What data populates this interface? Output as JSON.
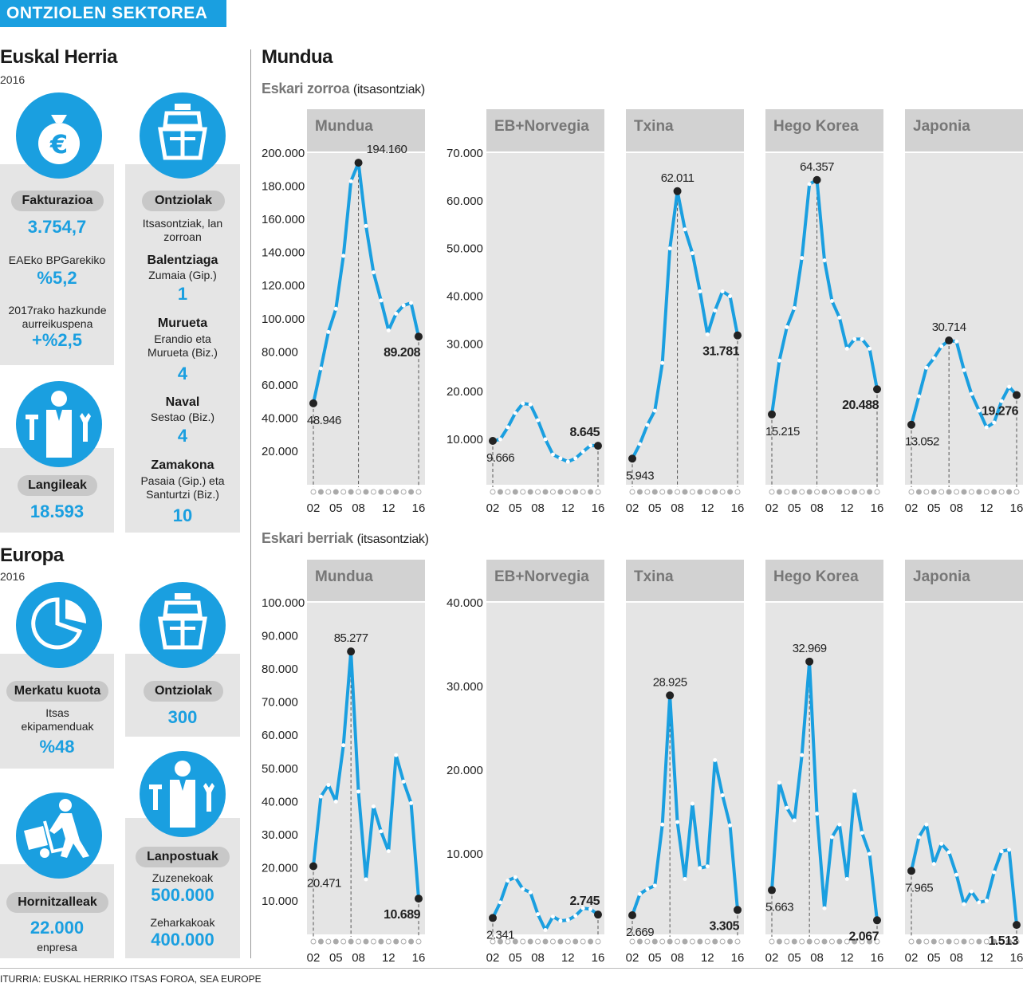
{
  "banner": "ONTZIOLEN SEKTOREA",
  "left": {
    "eh_title": "Euskal Herria",
    "eh_year": "2016",
    "fakt_label": "Fakturazioa",
    "fakt_value": "3.754,7",
    "bpg_label": "EAEko BPGarekiko",
    "bpg_value": "%5,2",
    "hazk_label": "2017rako hazkunde aurreikuspena",
    "hazk_value": "+%2,5",
    "lang_label": "Langileak",
    "lang_value": "18.593",
    "ontz_label": "Ontziolak",
    "ontz_sub": "Itsasontziak, lan zorroan",
    "yards": [
      {
        "name": "Balentziaga",
        "place": "Zumaia (Gip.)",
        "value": "1"
      },
      {
        "name": "Murueta",
        "place": "Erandio eta Murueta (Biz.)",
        "value": "4"
      },
      {
        "name": "Naval",
        "place": "Sestao (Biz.)",
        "value": "4"
      },
      {
        "name": "Zamakona",
        "place": "Pasaia (Gip.) eta Santurtzi (Biz.)",
        "value": "10"
      }
    ],
    "eu_title": "Europa",
    "eu_year": "2016",
    "merk_label": "Merkatu kuota",
    "merk_sub": "Itsas ekipamenduak",
    "merk_value": "%48",
    "eu_ontz_label": "Ontziolak",
    "eu_ontz_value": "300",
    "horn_label": "Hornitzalleak",
    "horn_value": "22.000",
    "horn_sub": "enpresa",
    "lanp_label": "Lanpostuak",
    "zuz_label": "Zuzenekoak",
    "zuz_value": "500.000",
    "zeh_label": "Zeharkakoak",
    "zeh_value": "400.000"
  },
  "right": {
    "title": "Mundua",
    "row1_title": "Eskari zorroa",
    "row1_sub": "(itsasontziak)",
    "row2_title": "Eskari berriak",
    "row2_sub": "(itsasontziak)"
  },
  "source": "ITURRIA: EUSKAL HERRIKO ITSAS FOROA, SEA EUROPE",
  "colors": {
    "accent": "#1a9fe0",
    "panel": "#e5e5e5",
    "header": "#d2d2d2"
  },
  "chart_data": [
    {
      "type": "line",
      "group": "Eskari zorroa",
      "title": "Mundua",
      "yticks": [
        "200.000",
        "180.000",
        "160.000",
        "140.000",
        "120.000",
        "100.000",
        "80.000",
        "60.000",
        "40.000",
        "20.000"
      ],
      "ylim": [
        0,
        200000
      ],
      "xticks": [
        "02",
        "05",
        "08",
        "12",
        "16"
      ],
      "values": [
        48946,
        70000,
        92000,
        106000,
        138000,
        183000,
        194160,
        156000,
        128000,
        111000,
        93000,
        103000,
        108000,
        109500,
        89208
      ],
      "peak_index": 6,
      "peak_label": "194.160",
      "start_label": "48.946",
      "end_label": "89.208"
    },
    {
      "type": "line",
      "group": "Eskari zorroa",
      "title": "EB+Norvegia",
      "yticks": [
        "70.000",
        "60.000",
        "50.000",
        "40.000",
        "30.000",
        "20.000",
        "10.000"
      ],
      "ylim": [
        0,
        70000
      ],
      "xticks": [
        "02",
        "05",
        "08",
        "12",
        "16"
      ],
      "values": [
        9666,
        10000,
        12500,
        15500,
        17500,
        17300,
        14000,
        10000,
        6800,
        6000,
        5300,
        6000,
        7400,
        8700,
        8645
      ],
      "start_label": "9.666",
      "end_label": "8.645"
    },
    {
      "type": "line",
      "group": "Eskari zorroa",
      "title": "Txina",
      "yticks": [
        "70.000",
        "60.000",
        "50.000",
        "40.000",
        "30.000",
        "20.000",
        "10.000"
      ],
      "ylim": [
        0,
        70000
      ],
      "xticks": [
        "02",
        "05",
        "08",
        "12",
        "16"
      ],
      "values": [
        5943,
        9000,
        13000,
        16000,
        26000,
        50000,
        62011,
        54000,
        49000,
        41000,
        32000,
        37000,
        41000,
        40000,
        31781
      ],
      "peak_index": 6,
      "peak_label": "62.011",
      "start_label": "5.943",
      "end_label": "31.781"
    },
    {
      "type": "line",
      "group": "Eskari zorroa",
      "title": "Hego Korea",
      "yticks": [
        "70.000",
        "60.000",
        "50.000",
        "40.000",
        "30.000",
        "20.000",
        "10.000"
      ],
      "ylim": [
        0,
        70000
      ],
      "xticks": [
        "02",
        "05",
        "08",
        "12",
        "16"
      ],
      "values": [
        15215,
        26500,
        33500,
        37500,
        48000,
        63500,
        64357,
        47500,
        39000,
        35500,
        29000,
        31000,
        31000,
        29000,
        20488
      ],
      "peak_index": 6,
      "peak_label": "64.357",
      "start_label": "15.215",
      "end_label": "20.488"
    },
    {
      "type": "line",
      "group": "Eskari zorroa",
      "title": "Japonia",
      "yticks": [
        "70.000",
        "60.000",
        "50.000",
        "40.000",
        "30.000",
        "20.000",
        "10.000"
      ],
      "ylim": [
        0,
        70000
      ],
      "xticks": [
        "02",
        "05",
        "08",
        "12",
        "16"
      ],
      "values": [
        13052,
        19000,
        25000,
        27000,
        29500,
        30714,
        30500,
        24500,
        19500,
        16000,
        12500,
        13500,
        18000,
        21000,
        19276
      ],
      "peak_index": 5,
      "peak_label": "30.714",
      "start_label": "13.052",
      "end_label": "19.276"
    },
    {
      "type": "line",
      "group": "Eskari berriak",
      "title": "Mundua",
      "yticks": [
        "100.000",
        "90.000",
        "80.000",
        "70.000",
        "60.000",
        "50.000",
        "40.000",
        "30.000",
        "20.000",
        "10.000"
      ],
      "ylim": [
        0,
        100000
      ],
      "xticks": [
        "02",
        "05",
        "08",
        "12",
        "16"
      ],
      "values": [
        20471,
        41500,
        45000,
        40000,
        57000,
        85277,
        43000,
        16500,
        38500,
        31000,
        25000,
        54000,
        46000,
        39500,
        10689
      ],
      "peak_index": 5,
      "peak_label": "85.277",
      "start_label": "20.471",
      "end_label": "10.689"
    },
    {
      "type": "line",
      "group": "Eskari berriak",
      "title": "EB+Norvegia",
      "yticks": [
        "40.000",
        "30.000",
        "20.000",
        "10.000"
      ],
      "ylim": [
        0,
        40000
      ],
      "xticks": [
        "02",
        "05",
        "08",
        "12",
        "16"
      ],
      "values": [
        2341,
        4200,
        6800,
        7200,
        5800,
        5400,
        2800,
        900,
        2500,
        2000,
        2100,
        2600,
        3500,
        3400,
        2745
      ],
      "start_label": "2.341",
      "end_label": "2.745"
    },
    {
      "type": "line",
      "group": "Eskari berriak",
      "title": "Txina",
      "yticks": [
        "40.000",
        "30.000",
        "20.000",
        "10.000"
      ],
      "ylim": [
        0,
        40000
      ],
      "xticks": [
        "02",
        "05",
        "08",
        "12",
        "16"
      ],
      "values": [
        2669,
        5200,
        5800,
        6200,
        13500,
        28925,
        13800,
        7000,
        16000,
        8300,
        8500,
        21200,
        17000,
        13400,
        3305
      ],
      "peak_index": 5,
      "peak_label": "28.925",
      "start_label": "2.669",
      "end_label": "3.305"
    },
    {
      "type": "line",
      "group": "Eskari berriak",
      "title": "Hego Korea",
      "yticks": [
        "40.000",
        "30.000",
        "20.000",
        "10.000"
      ],
      "ylim": [
        0,
        40000
      ],
      "xticks": [
        "02",
        "05",
        "08",
        "12",
        "16"
      ],
      "values": [
        5663,
        18500,
        15500,
        14000,
        21800,
        32969,
        14800,
        3500,
        12000,
        13500,
        7000,
        17500,
        12500,
        10000,
        2067
      ],
      "peak_index": 5,
      "peak_label": "32.969",
      "start_label": "5.663",
      "end_label": "2.067"
    },
    {
      "type": "line",
      "group": "Eskari berriak",
      "title": "Japonia",
      "yticks": [
        "40.000",
        "30.000",
        "20.000",
        "10.000"
      ],
      "ylim": [
        0,
        40000
      ],
      "xticks": [
        "02",
        "05",
        "08",
        "12",
        "16"
      ],
      "values": [
        7965,
        12000,
        13500,
        8800,
        11200,
        10200,
        7500,
        4000,
        5500,
        4200,
        4400,
        7800,
        10300,
        10500,
        1513
      ],
      "start_label": "7.965",
      "end_label": "1.513"
    }
  ]
}
